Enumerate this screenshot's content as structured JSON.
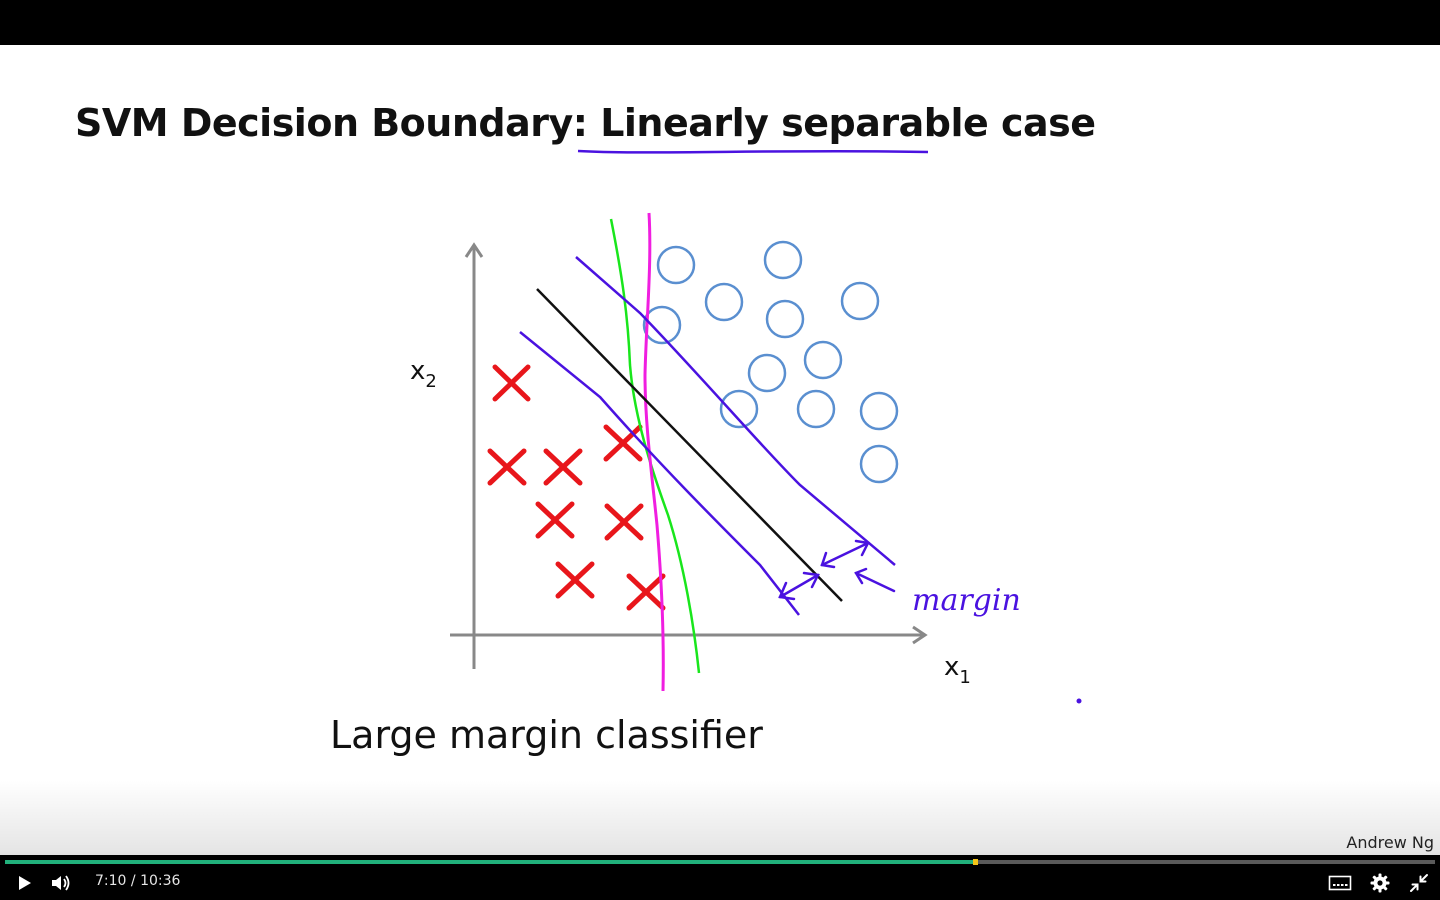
{
  "slide": {
    "title_part1": "SVM Decision Boundary: ",
    "title_part2": "Linearly separable",
    "title_part3": " case",
    "caption": "Large margin classifier",
    "author": "Andrew Ng",
    "axis_x_label": "x",
    "axis_x_sub": "1",
    "axis_y_label": "x",
    "axis_y_sub": "2",
    "annotation": "margin",
    "colors": {
      "cross": "#e8161b",
      "circle": "#5a8fd0",
      "decision_boundary": "#111111",
      "margin_lines": "#4a12e0",
      "alt_boundary_green": "#19e61c",
      "alt_boundary_magenta": "#f01ee0",
      "axis": "#888888"
    }
  },
  "player": {
    "current_time": "7:10",
    "separator": "/",
    "duration": "10:36",
    "progress_fraction": 0.677,
    "icons": [
      "play-icon",
      "volume-icon",
      "captions-icon",
      "settings-icon",
      "exit-fullscreen-icon"
    ]
  }
}
